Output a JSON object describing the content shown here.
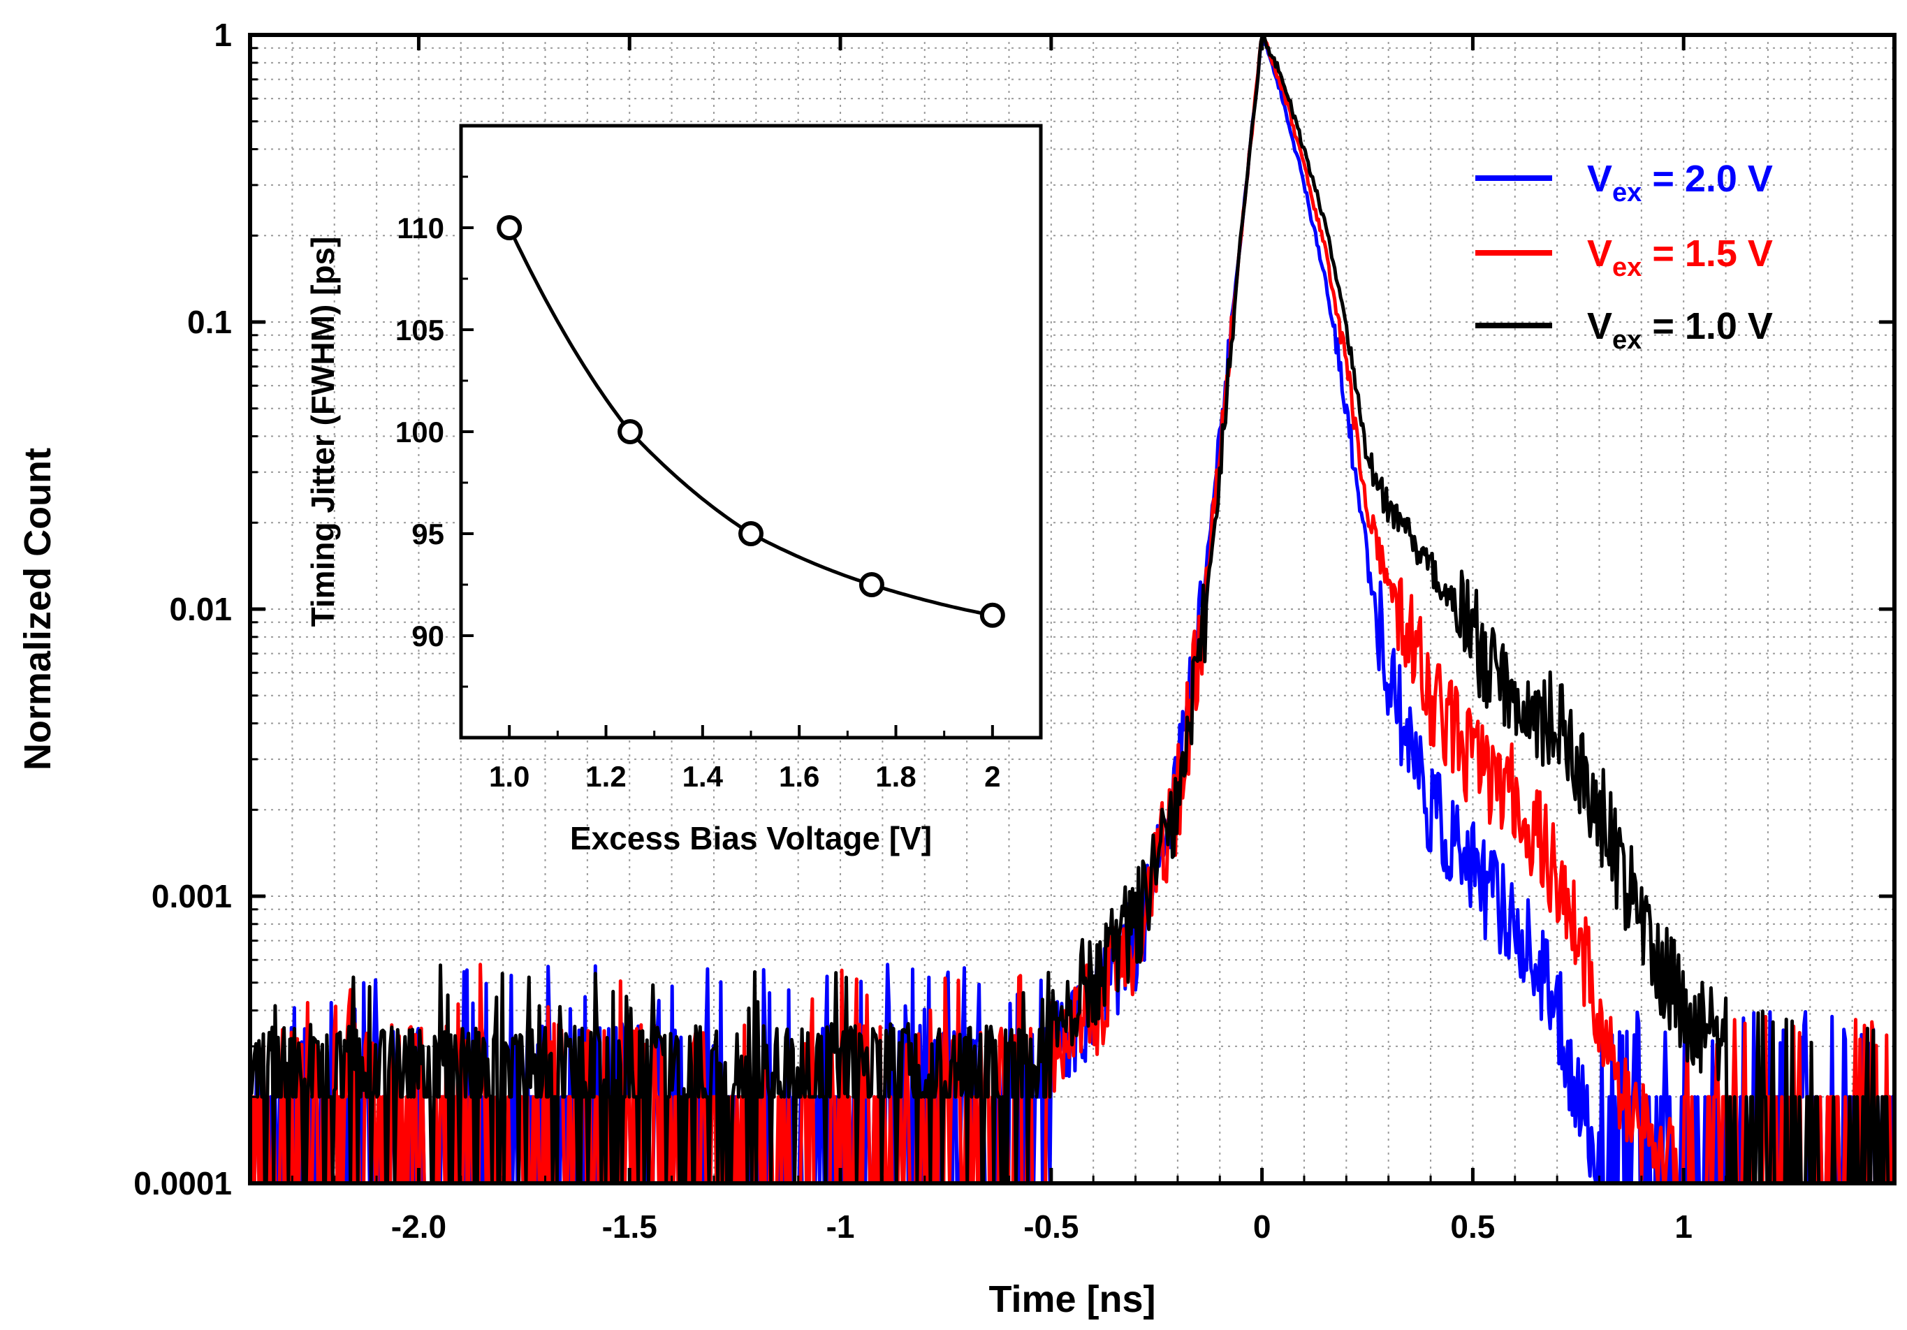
{
  "chart_data": [
    {
      "type": "line",
      "role": "main",
      "xlabel": "Time [ns]",
      "ylabel": "Normalized Count",
      "xlim": [
        -2.4,
        1.5
      ],
      "ylim": [
        0.0001,
        1
      ],
      "yscale": "log",
      "grid": true,
      "x_ticks": [
        -2.0,
        -1.5,
        -1,
        -0.5,
        0,
        0.5,
        1
      ],
      "x_tick_labels": [
        "-2.0",
        "-1.5",
        "-1",
        "-0.5",
        "0",
        "0.5",
        "1"
      ],
      "y_ticks": [
        0.0001,
        0.001,
        0.01,
        0.1,
        1
      ],
      "y_tick_labels": [
        "0.0001",
        "0.001",
        "0.01",
        "0.1",
        "1"
      ],
      "legend_position": "top-right",
      "series": [
        {
          "name": "V_ex = 2.0 V",
          "label_main": "V",
          "label_sub": "ex",
          "label_rest": " = 2.0 V",
          "color": "#0000ff",
          "noise_floor": 0.00012,
          "x": [
            -0.5,
            -0.4,
            -0.3,
            -0.25,
            -0.2,
            -0.15,
            -0.1,
            -0.05,
            0,
            0.05,
            0.1,
            0.15,
            0.2,
            0.25,
            0.3,
            0.35,
            0.4,
            0.5,
            0.6,
            0.7,
            0.75,
            0.78,
            0.8
          ],
          "y": [
            0.0003,
            0.0004,
            0.0007,
            0.0012,
            0.0025,
            0.008,
            0.04,
            0.2,
            1,
            0.6,
            0.3,
            0.14,
            0.05,
            0.015,
            0.006,
            0.0035,
            0.002,
            0.0012,
            0.0008,
            0.0004,
            0.0002,
            0.00015,
            0.0001
          ]
        },
        {
          "name": "V_ex = 1.5 V",
          "label_main": "V",
          "label_sub": "ex",
          "label_rest": " = 1.5 V",
          "color": "#ff0000",
          "noise_floor": 0.00011,
          "x": [
            -0.5,
            -0.4,
            -0.3,
            -0.25,
            -0.2,
            -0.15,
            -0.1,
            -0.05,
            0,
            0.05,
            0.1,
            0.15,
            0.2,
            0.25,
            0.3,
            0.35,
            0.4,
            0.5,
            0.6,
            0.7,
            0.8,
            0.85,
            0.9,
            1.0
          ],
          "y": [
            0.0003,
            0.0004,
            0.0007,
            0.0012,
            0.0022,
            0.007,
            0.035,
            0.2,
            1,
            0.65,
            0.35,
            0.18,
            0.07,
            0.022,
            0.012,
            0.008,
            0.005,
            0.003,
            0.0022,
            0.0012,
            0.0004,
            0.0002,
            0.00015,
            0.0001
          ]
        },
        {
          "name": "V_ex = 1.0 V",
          "label_main": "V",
          "label_sub": "ex",
          "label_rest": " = 1.0 V",
          "color": "#000000",
          "noise_floor": 0.00013,
          "x": [
            -0.5,
            -0.4,
            -0.3,
            -0.25,
            -0.2,
            -0.15,
            -0.1,
            -0.05,
            0,
            0.05,
            0.1,
            0.15,
            0.2,
            0.25,
            0.3,
            0.35,
            0.4,
            0.5,
            0.6,
            0.7,
            0.8,
            0.9,
            1.0,
            1.1
          ],
          "y": [
            0.0004,
            0.0005,
            0.0008,
            0.0012,
            0.002,
            0.006,
            0.03,
            0.2,
            1,
            0.7,
            0.4,
            0.22,
            0.1,
            0.035,
            0.022,
            0.018,
            0.014,
            0.008,
            0.005,
            0.004,
            0.002,
            0.0008,
            0.0004,
            0.0003
          ]
        }
      ]
    },
    {
      "type": "line",
      "role": "inset",
      "xlabel": "Excess Bias Voltage [V]",
      "ylabel": "Timing Jitter (FWHM) [ps]",
      "xlim": [
        0.9,
        2.1
      ],
      "ylim": [
        85,
        115
      ],
      "x_ticks": [
        1.0,
        1.2,
        1.4,
        1.6,
        1.8,
        2
      ],
      "x_tick_labels": [
        "1.0",
        "1.2",
        "1.4",
        "1.6",
        "1.8",
        "2"
      ],
      "y_ticks": [
        90,
        95,
        100,
        105,
        110
      ],
      "y_tick_labels": [
        "90",
        "95",
        "100",
        "105",
        "110"
      ],
      "series": [
        {
          "color": "#000000",
          "marker": "open-circle",
          "x": [
            1.0,
            1.25,
            1.5,
            1.75,
            2.0
          ],
          "y": [
            110,
            100,
            95,
            92.5,
            91
          ]
        }
      ]
    }
  ]
}
